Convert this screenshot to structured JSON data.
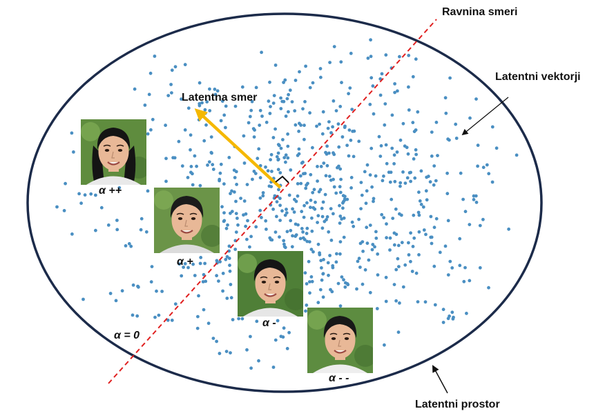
{
  "labels": {
    "direction_plane": "Ravnina smeri",
    "latent_vectors": "Latentni vektorji",
    "latent_direction": "Latentna smer",
    "latent_space": "Latentni prostor"
  },
  "faces": [
    {
      "alpha_label": "α ++",
      "hair": "#141414",
      "shirt": "#e9e9e9",
      "bg": "#5f8c3e",
      "long_hair": true
    },
    {
      "alpha_label": "α +",
      "hair": "#1b1b1b",
      "shirt": "#dcdcdc",
      "bg": "#6b9448",
      "long_hair": false
    },
    {
      "alpha_label": "α -",
      "hair": "#151515",
      "shirt": "#e6e6e6",
      "bg": "#4f7f37",
      "long_hair": false
    },
    {
      "alpha_label": "α - -",
      "hair": "#181818",
      "shirt": "#eeeeee",
      "bg": "#5d8c40",
      "long_hair": false
    }
  ],
  "zero_label": "α = 0",
  "colors": {
    "ellipse": "#1c2b4a",
    "points": "#4a8fc2",
    "direction_arrow": "#f5b800",
    "plane_line": "#e02020",
    "pointer": "#111111",
    "skin": "#e8b897"
  },
  "point_count": 720
}
